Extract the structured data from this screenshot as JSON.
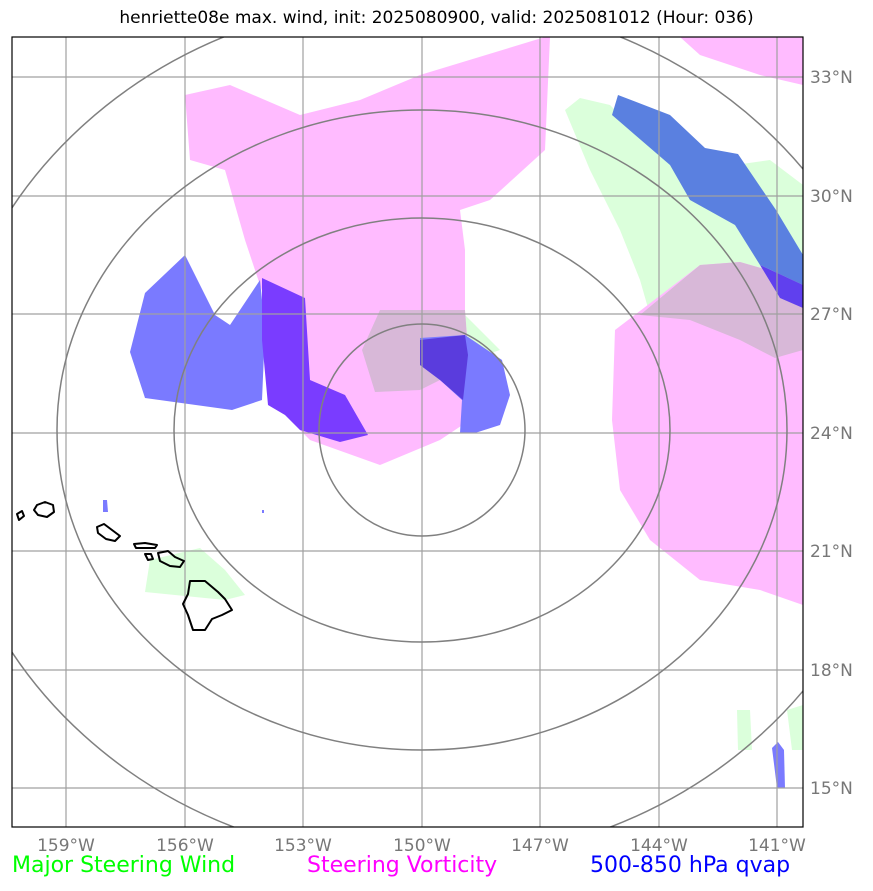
{
  "title": "henriette08e max. wind, init: 2025080900, valid: 2025081012 (Hour: 036)",
  "map": {
    "lon_labels": [
      "159°W",
      "156°W",
      "153°W",
      "150°W",
      "147°W",
      "144°W",
      "141°W"
    ],
    "lat_labels": [
      "33°N",
      "30°N",
      "27°N",
      "24°N",
      "21°N",
      "18°N",
      "15°N"
    ],
    "colors": {
      "steering_wind": "#00ff00",
      "steering_vorticity": "#ff00ff",
      "qvap": "#0000ff"
    }
  },
  "legend": {
    "wind": "Major Steering Wind",
    "vorticity": "Steering Vorticity",
    "qvap": "500-850 hPa qvap"
  }
}
